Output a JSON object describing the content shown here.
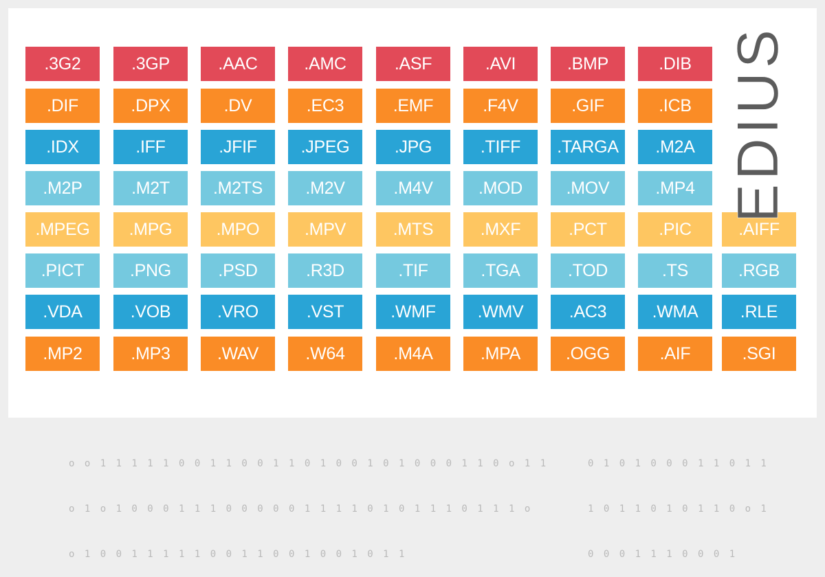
{
  "brand": {
    "name": "EDIUS"
  },
  "colors": {
    "red": "#e24a58",
    "orange": "#fa8c26",
    "blue": "#29a4d6",
    "light_blue": "#75c9df",
    "yellow": "#fec661",
    "brand_text": "#5c5c5c",
    "binary_text": "#b9b9b9"
  },
  "grid": {
    "rows": [
      {
        "color": "red",
        "formats": [
          ".3G2",
          ".3GP",
          ".AAC",
          ".AMC",
          ".ASF",
          ".AVI",
          ".BMP",
          ".DIB"
        ]
      },
      {
        "color": "orange",
        "formats": [
          ".DIF",
          ".DPX",
          ".DV",
          ".EC3",
          ".EMF",
          ".F4V",
          ".GIF",
          ".ICB"
        ]
      },
      {
        "color": "blue",
        "formats": [
          ".IDX",
          ".IFF",
          ".JFIF",
          ".JPEG",
          ".JPG",
          ".TIFF",
          ".TARGA",
          ".M2A"
        ]
      },
      {
        "color": "light_blue",
        "formats": [
          ".M2P",
          ".M2T",
          ".M2TS",
          ".M2V",
          ".M4V",
          ".MOD",
          ".MOV",
          ".MP4"
        ]
      },
      {
        "color": "yellow",
        "formats": [
          ".MPEG",
          ".MPG",
          ".MPO",
          ".MPV",
          ".MTS",
          ".MXF",
          ".PCT",
          ".PIC",
          ".AIFF"
        ]
      },
      {
        "color": "light_blue",
        "formats": [
          ".PICT",
          ".PNG",
          ".PSD",
          ".R3D",
          ".TIF",
          ".TGA",
          ".TOD",
          ".TS",
          ".RGB"
        ]
      },
      {
        "color": "blue",
        "formats": [
          ".VDA",
          ".VOB",
          ".VRO",
          ".VST",
          ".WMF",
          ".WMV",
          ".AC3",
          ".WMA",
          ".RLE"
        ]
      },
      {
        "color": "orange",
        "formats": [
          ".MP2",
          ".MP3",
          ".WAV",
          ".W64",
          ".M4A",
          ".MPA",
          ".OGG",
          ".AIF",
          ".SGI"
        ]
      }
    ]
  },
  "binary_left": [
    "o o 1 1 1 1 1 0 0 1 1 0 0 1 1 0 1 0 0 1 0 1 0 0 0 1 1 0 o 1 1",
    "o 1 o 1 0 0 0 1 1 1 0 0 0 0 0 1 1 1 1 0 1 0 1 1 1 0 1 1 1 o",
    "o 1 0 0 1 1 1 1 1 0 0 1 1 0 0 1 0 0 1 0 1 1"
  ],
  "binary_right": [
    "0 1 0 1 0 0 0 1 1 0 1 1",
    "1 0 1 1 0 1 0 1 1 0 o 1",
    "0 0 0 1 1 1 0 0 0 1"
  ]
}
